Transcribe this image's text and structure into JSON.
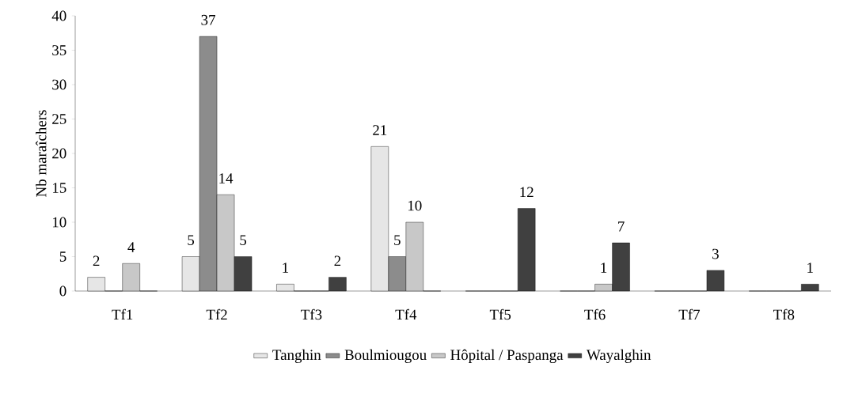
{
  "chart_data": {
    "type": "bar",
    "ylabel": "Nb maraîchers",
    "categories": [
      "Tf1",
      "Tf2",
      "Tf3",
      "Tf4",
      "Tf5",
      "Tf6",
      "Tf7",
      "Tf8"
    ],
    "series": [
      {
        "name": "Tanghin",
        "color": "#e6e6e6",
        "values": [
          2,
          5,
          1,
          21,
          0,
          0,
          0,
          0
        ],
        "value_labels": [
          "2",
          "5",
          "1",
          "21",
          null,
          null,
          null,
          null
        ]
      },
      {
        "name": "Boulmiougou",
        "color": "#8c8c8c",
        "values": [
          0,
          37,
          0,
          5,
          0,
          0,
          0,
          0
        ],
        "value_labels": [
          null,
          "37",
          null,
          "5",
          null,
          null,
          null,
          null
        ]
      },
      {
        "name": "Hôpital / Paspanga",
        "color": "#c8c8c8",
        "values": [
          4,
          14,
          0,
          10,
          0,
          1,
          0,
          0
        ],
        "value_labels": [
          "4",
          "14",
          null,
          "10",
          null,
          "1",
          null,
          null
        ]
      },
      {
        "name": "Wayalghin",
        "color": "#404040",
        "values": [
          0,
          5,
          2,
          0,
          12,
          7,
          3,
          1
        ],
        "value_labels": [
          null,
          "5",
          "2",
          null,
          "12",
          "7",
          "3",
          "1"
        ]
      }
    ],
    "ylim": [
      0,
      40
    ],
    "yticks": [
      0,
      5,
      10,
      15,
      20,
      25,
      30,
      35,
      40
    ],
    "grid": false,
    "legend": "bottom"
  }
}
